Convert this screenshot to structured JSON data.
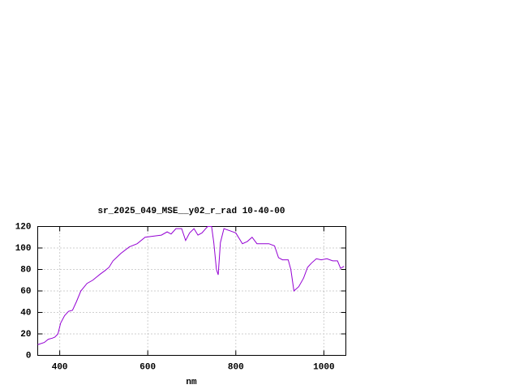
{
  "chart_data": {
    "type": "line",
    "title": "sr_2025_049_MSE__y02_r_rad 10-40-00",
    "xlabel": "nm",
    "x": [
      350,
      365,
      374,
      383,
      389,
      396,
      402,
      411,
      420,
      429,
      438,
      448,
      462,
      475,
      484,
      493,
      503,
      512,
      521,
      539,
      558,
      576,
      594,
      613,
      631,
      644,
      653,
      664,
      677,
      686,
      695,
      705,
      714,
      723,
      736,
      745,
      750,
      756,
      760,
      765,
      773,
      787,
      800,
      815,
      826,
      837,
      848,
      861,
      875,
      888,
      897,
      906,
      919,
      925,
      932,
      943,
      954,
      963,
      972,
      983,
      994,
      1007,
      1020,
      1031,
      1038,
      1046
    ],
    "values": [
      10,
      12,
      15,
      16,
      17,
      20,
      30,
      37,
      41,
      42,
      50,
      60,
      67,
      70,
      73,
      76,
      79,
      82,
      88,
      95,
      101,
      104,
      110,
      111,
      112,
      115,
      113,
      118,
      118,
      107,
      114,
      118,
      112,
      114,
      120,
      120,
      105,
      80,
      75,
      105,
      118,
      116,
      114,
      104,
      106,
      110,
      104,
      104,
      104,
      102,
      91,
      89,
      89,
      80,
      60,
      64,
      72,
      82,
      86,
      90,
      89,
      90,
      88,
      88,
      81,
      83
    ],
    "color": "#9400d3",
    "xlim": [
      350,
      1050
    ],
    "ylim": [
      0,
      120
    ],
    "xticks": [
      400,
      600,
      800,
      1000
    ],
    "yticks": [
      0,
      20,
      40,
      60,
      80,
      100,
      120
    ],
    "grid": true
  }
}
